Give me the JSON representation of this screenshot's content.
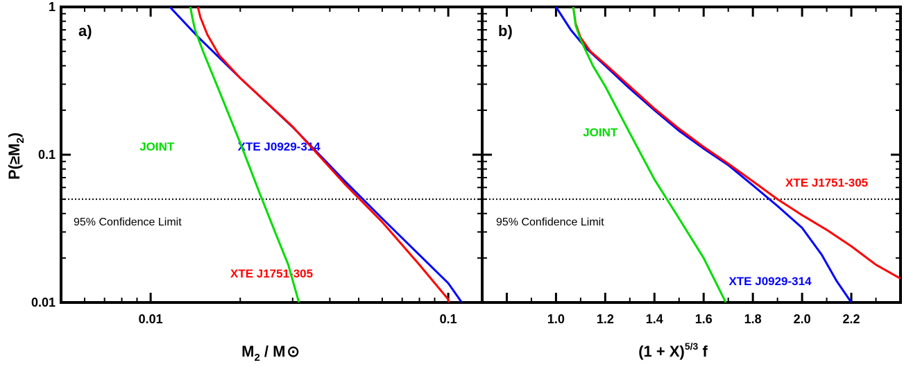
{
  "ylabel": {
    "main": "P(≥M",
    "sub": "2",
    "close": ")"
  },
  "chart_data": [
    {
      "type": "line",
      "panel_label": "a)",
      "xscale": "log",
      "yscale": "log",
      "xlim": [
        0.005,
        0.13
      ],
      "ylim": [
        0.01,
        1
      ],
      "xlabel": {
        "main": "M",
        "sub": "2",
        "rest": " / M",
        "symbol": "⊙"
      },
      "xticks": [
        {
          "value": 0.01,
          "label": "0.01"
        },
        {
          "value": 0.1,
          "label": "0.1"
        }
      ],
      "yticks": [
        {
          "value": 1,
          "label": "1"
        },
        {
          "value": 0.1,
          "label": "0.1"
        },
        {
          "value": 0.01,
          "label": "0.01"
        }
      ],
      "confidence_line": {
        "y": 0.05,
        "label": "95% Confidence Limit"
      },
      "series": [
        {
          "name": "XTE J0929-314",
          "color": "#0000ff",
          "label_at": [
            0.027,
            0.1
          ],
          "points": [
            [
              0.0116,
              1.0
            ],
            [
              0.0145,
              0.62
            ],
            [
              0.02,
              0.33
            ],
            [
              0.03,
              0.154
            ],
            [
              0.045,
              0.066
            ],
            [
              0.06,
              0.037
            ],
            [
              0.08,
              0.021
            ],
            [
              0.1,
              0.0135
            ],
            [
              0.111,
              0.01
            ]
          ]
        },
        {
          "name": "XTE J1751-305",
          "color": "#ff0000",
          "label_at": [
            0.0255,
            0.0138
          ],
          "points": [
            [
              0.0144,
              1.0
            ],
            [
              0.0147,
              0.85
            ],
            [
              0.0155,
              0.65
            ],
            [
              0.017,
              0.47
            ],
            [
              0.02,
              0.33
            ],
            [
              0.03,
              0.155
            ],
            [
              0.045,
              0.063
            ],
            [
              0.06,
              0.035
            ],
            [
              0.08,
              0.018
            ],
            [
              0.1,
              0.0105
            ],
            [
              0.1005,
              0.01
            ]
          ]
        },
        {
          "name": "JOINT",
          "color": "#00dd00",
          "label_at": [
            0.0105,
            0.1
          ],
          "points": [
            [
              0.0136,
              1.0
            ],
            [
              0.0138,
              0.85
            ],
            [
              0.0141,
              0.7
            ],
            [
              0.015,
              0.5
            ],
            [
              0.017,
              0.27
            ],
            [
              0.02,
              0.12
            ],
            [
              0.023,
              0.058
            ],
            [
              0.026,
              0.031
            ],
            [
              0.029,
              0.018
            ],
            [
              0.0315,
              0.01
            ]
          ]
        }
      ]
    },
    {
      "type": "line",
      "panel_label": "b)",
      "xscale": "linear",
      "yscale": "log",
      "xlim": [
        0.7,
        2.4
      ],
      "ylim": [
        0.01,
        1
      ],
      "xlabel": {
        "main": "(1 + X)",
        "sup": "5/3",
        "rest": " f"
      },
      "xticks": [
        {
          "value": 1.0,
          "label": "1.0"
        },
        {
          "value": 1.2,
          "label": "1.2"
        },
        {
          "value": 1.4,
          "label": "1.4"
        },
        {
          "value": 1.6,
          "label": "1.6"
        },
        {
          "value": 1.8,
          "label": "1.8"
        },
        {
          "value": 2.0,
          "label": "2.0"
        },
        {
          "value": 2.2,
          "label": "2.2"
        }
      ],
      "yticks": [
        {
          "value": 1,
          "label": ""
        },
        {
          "value": 0.1,
          "label": ""
        },
        {
          "value": 0.01,
          "label": ""
        }
      ],
      "confidence_line": {
        "y": 0.05,
        "label": "95% Confidence Limit"
      },
      "series": [
        {
          "name": "XTE J0929-314",
          "color": "#0000ff",
          "label_at": [
            1.87,
            0.0123
          ],
          "points": [
            [
              1.0,
              1.0
            ],
            [
              1.06,
              0.7
            ],
            [
              1.12,
              0.53
            ],
            [
              1.2,
              0.4
            ],
            [
              1.3,
              0.28
            ],
            [
              1.4,
              0.2
            ],
            [
              1.5,
              0.145
            ],
            [
              1.6,
              0.11
            ],
            [
              1.7,
              0.085
            ],
            [
              1.8,
              0.062
            ],
            [
              1.9,
              0.045
            ],
            [
              2.0,
              0.032
            ],
            [
              2.08,
              0.021
            ],
            [
              2.14,
              0.014
            ],
            [
              2.2,
              0.01
            ]
          ]
        },
        {
          "name": "XTE J1751-305",
          "color": "#ff0000",
          "label_at": [
            2.1,
            0.057
          ],
          "points": [
            [
              1.07,
              1.0
            ],
            [
              1.08,
              0.77
            ],
            [
              1.1,
              0.62
            ],
            [
              1.14,
              0.5
            ],
            [
              1.2,
              0.41
            ],
            [
              1.3,
              0.29
            ],
            [
              1.4,
              0.205
            ],
            [
              1.5,
              0.15
            ],
            [
              1.6,
              0.113
            ],
            [
              1.7,
              0.087
            ],
            [
              1.8,
              0.066
            ],
            [
              1.9,
              0.05
            ],
            [
              2.0,
              0.039
            ],
            [
              2.1,
              0.031
            ],
            [
              2.2,
              0.024
            ],
            [
              2.3,
              0.018
            ],
            [
              2.4,
              0.0145
            ]
          ]
        },
        {
          "name": "JOINT",
          "color": "#00dd00",
          "label_at": [
            1.18,
            0.125
          ],
          "points": [
            [
              1.07,
              1.0
            ],
            [
              1.08,
              0.75
            ],
            [
              1.1,
              0.6
            ],
            [
              1.15,
              0.4
            ],
            [
              1.2,
              0.29
            ],
            [
              1.3,
              0.14
            ],
            [
              1.4,
              0.068
            ],
            [
              1.5,
              0.037
            ],
            [
              1.6,
              0.02
            ],
            [
              1.69,
              0.01
            ]
          ]
        }
      ]
    }
  ]
}
